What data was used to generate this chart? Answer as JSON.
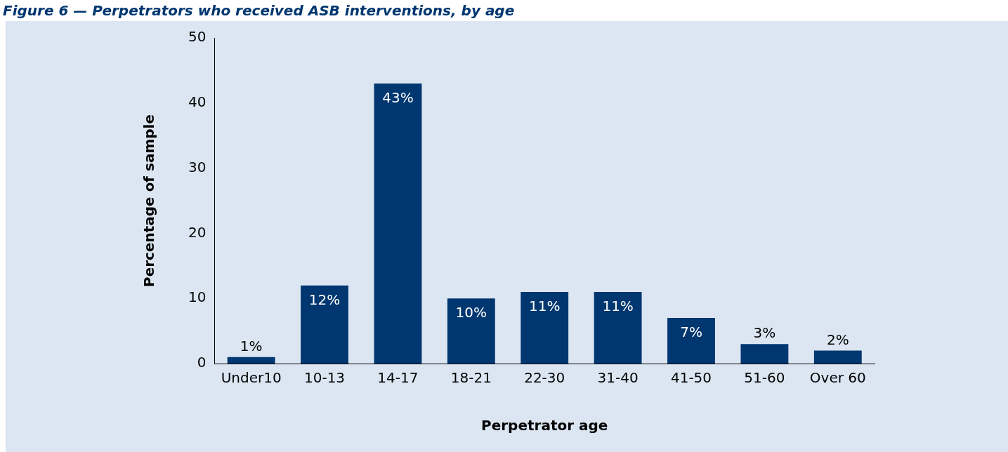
{
  "chart_data": {
    "type": "bar",
    "title": "Figure 6 — Perpetrators who received ASB interventions, by age",
    "xlabel": "Perpetrator age",
    "ylabel": "Percentage of sample",
    "categories": [
      "Under10",
      "10-13",
      "14-17",
      "18-21",
      "22-30",
      "31-40",
      "41-50",
      "51-60",
      "Over 60"
    ],
    "values": [
      1,
      12,
      43,
      10,
      11,
      11,
      7,
      3,
      2
    ],
    "value_labels": [
      "1%",
      "12%",
      "43%",
      "10%",
      "11%",
      "11%",
      "7%",
      "3%",
      "2%"
    ],
    "color": "#003770",
    "ylim": [
      0,
      50
    ],
    "yticks": [
      0,
      10,
      20,
      30,
      40,
      50
    ],
    "grid": false,
    "legend": false
  }
}
